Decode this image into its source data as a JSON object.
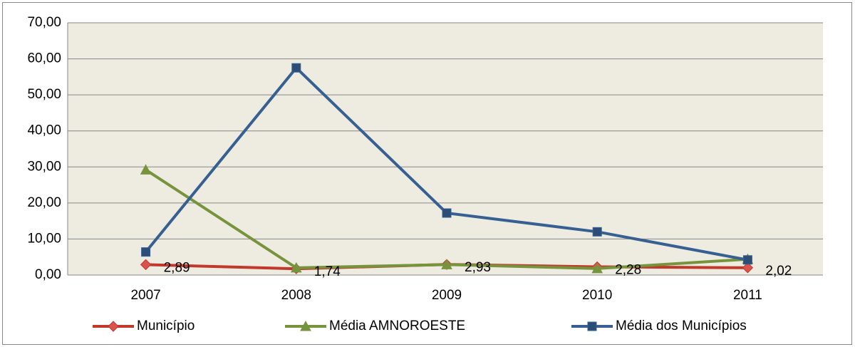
{
  "chart_data": {
    "type": "line",
    "categories": [
      "2007",
      "2008",
      "2009",
      "2010",
      "2011"
    ],
    "series": [
      {
        "name": "Município",
        "color": "#c0392b",
        "marker": "diamond",
        "values": [
          2.89,
          1.74,
          2.93,
          2.28,
          2.02
        ],
        "value_labels": [
          "2,89",
          "1,74",
          "2,93",
          "2,28",
          "2,02"
        ]
      },
      {
        "name": "Média AMNOROESTE",
        "color": "#77933c",
        "marker": "triangle",
        "values": [
          29.2,
          2.0,
          2.9,
          1.8,
          4.4
        ]
      },
      {
        "name": "Média dos Municípios",
        "color": "#376092",
        "marker": "square",
        "values": [
          6.4,
          57.5,
          17.2,
          12.0,
          4.2
        ]
      }
    ],
    "ylim": [
      0,
      70
    ],
    "yticks": [
      {
        "value": 0,
        "label": "0,00"
      },
      {
        "value": 10,
        "label": "10,00"
      },
      {
        "value": 20,
        "label": "20,00"
      },
      {
        "value": 30,
        "label": "30,00"
      },
      {
        "value": 40,
        "label": "40,00"
      },
      {
        "value": 50,
        "label": "50,00"
      },
      {
        "value": 60,
        "label": "60,00"
      },
      {
        "value": 70,
        "label": "70,00"
      }
    ],
    "grid": true,
    "legend": "bottom"
  }
}
